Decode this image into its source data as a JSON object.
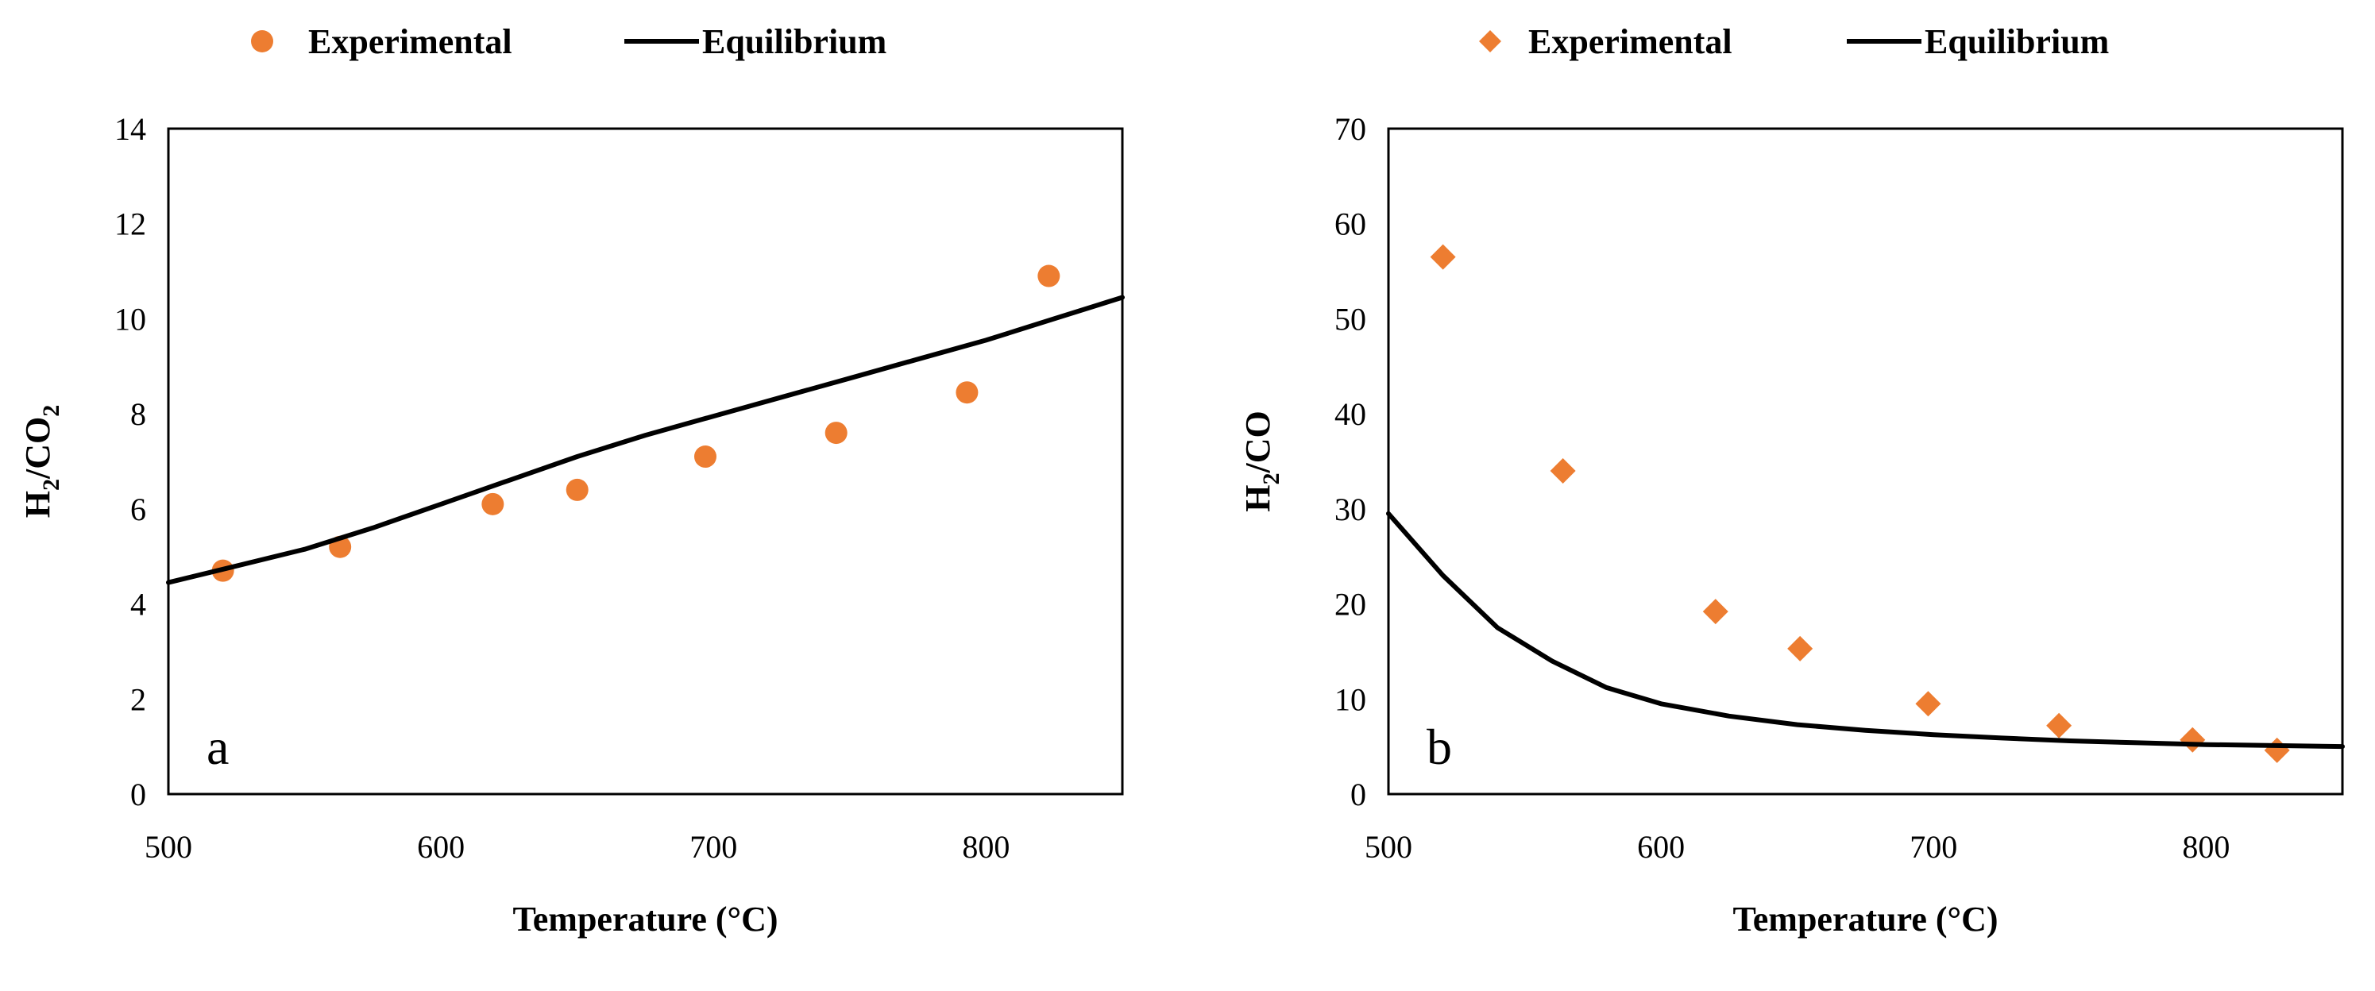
{
  "colors": {
    "marker": "#ED7D31",
    "line": "#000000"
  },
  "chart_data": [
    {
      "type": "scatter",
      "panel_label": "a",
      "xlabel": "Temperature (°C)",
      "ylabel": {
        "base": "H",
        "sub1": "2",
        "mid": "/CO",
        "sub2": "2"
      },
      "xlim": [
        500,
        850
      ],
      "ylim": [
        0,
        14
      ],
      "xticks": [
        500,
        600,
        700,
        800
      ],
      "yticks": [
        0,
        2,
        4,
        6,
        8,
        10,
        12,
        14
      ],
      "legend": {
        "experimental_label": "Experimental",
        "equilibrium_label": "Equilibrium",
        "marker": "circle"
      },
      "series": [
        {
          "name": "Experimental",
          "kind": "markers",
          "marker": "circle",
          "x": [
            520,
            563,
            619,
            650,
            697,
            745,
            793,
            823
          ],
          "y": [
            4.7,
            5.2,
            6.1,
            6.4,
            7.1,
            7.6,
            8.45,
            10.9
          ]
        },
        {
          "name": "Equilibrium",
          "kind": "line",
          "x": [
            500,
            525,
            550,
            575,
            600,
            625,
            650,
            675,
            700,
            725,
            750,
            775,
            800,
            825,
            850
          ],
          "y": [
            4.45,
            4.8,
            5.15,
            5.6,
            6.1,
            6.6,
            7.1,
            7.55,
            7.95,
            8.35,
            8.75,
            9.15,
            9.55,
            10.0,
            10.45
          ]
        }
      ]
    },
    {
      "type": "scatter",
      "panel_label": "b",
      "xlabel": "Temperature (°C)",
      "ylabel": {
        "base": "H",
        "sub1": "2",
        "mid": "/CO",
        "sub2": ""
      },
      "xlim": [
        500,
        850
      ],
      "ylim": [
        0,
        70
      ],
      "xticks": [
        500,
        600,
        700,
        800
      ],
      "yticks": [
        0,
        10,
        20,
        30,
        40,
        50,
        60,
        70
      ],
      "legend": {
        "experimental_label": "Experimental",
        "equilibrium_label": "Equilibrium",
        "marker": "diamond"
      },
      "series": [
        {
          "name": "Experimental",
          "kind": "markers",
          "marker": "diamond",
          "x": [
            520,
            564,
            620,
            651,
            698,
            746,
            795,
            826
          ],
          "y": [
            56.5,
            34,
            19.2,
            15.3,
            9.5,
            7.2,
            5.7,
            4.6
          ]
        },
        {
          "name": "Equilibrium",
          "kind": "line",
          "x": [
            500,
            520,
            540,
            560,
            580,
            600,
            625,
            650,
            675,
            700,
            725,
            750,
            775,
            800,
            825,
            850
          ],
          "y": [
            29.5,
            23,
            17.5,
            14,
            11.2,
            9.5,
            8.2,
            7.3,
            6.7,
            6.25,
            5.9,
            5.6,
            5.4,
            5.2,
            5.1,
            5.0
          ]
        }
      ]
    }
  ]
}
